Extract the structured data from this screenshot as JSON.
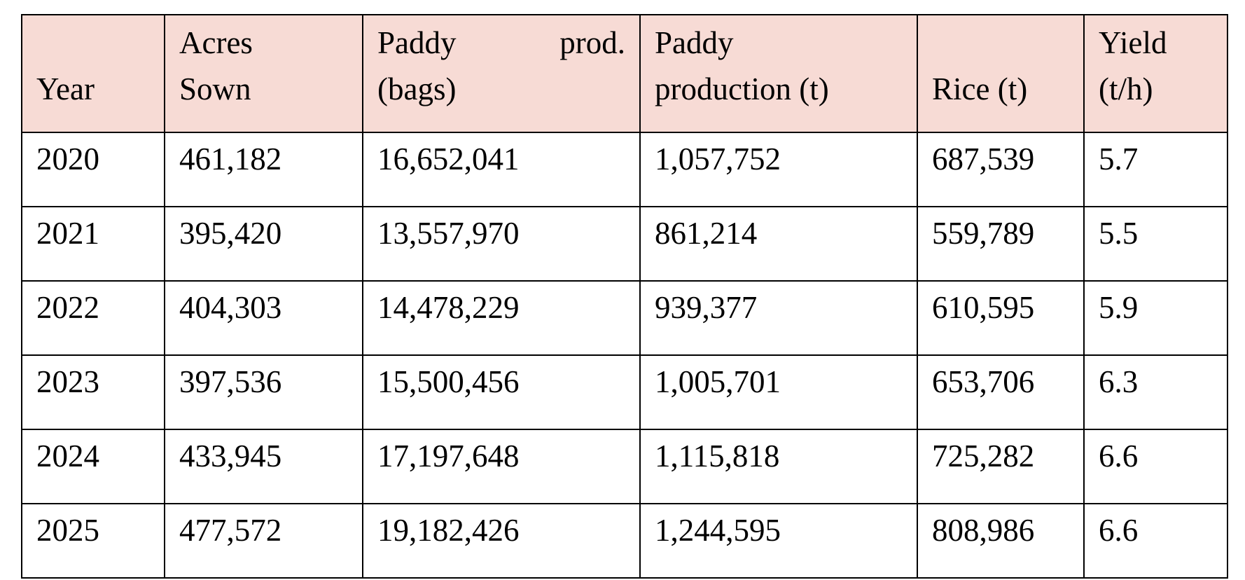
{
  "table": {
    "headers": {
      "year": "Year",
      "acres": [
        "Acres",
        "Sown"
      ],
      "bags": [
        "Paddy",
        "prod.",
        "(bags)"
      ],
      "paddy_t": [
        "Paddy",
        "production (t)"
      ],
      "rice_t": "Rice (t)",
      "yield": [
        "Yield",
        "(t/h)"
      ]
    },
    "header_background": "#f7dbd5",
    "rows": [
      [
        "2020",
        "461,182",
        "16,652,041",
        "1,057,752",
        "687,539",
        "5.7"
      ],
      [
        "2021",
        "395,420",
        "13,557,970",
        "861,214",
        "559,789",
        "5.5"
      ],
      [
        "2022",
        "404,303",
        "14,478,229",
        "939,377",
        "610,595",
        "5.9"
      ],
      [
        "2023",
        "397,536",
        "15,500,456",
        "1,005,701",
        "653,706",
        "6.3"
      ],
      [
        "2024",
        "433,945",
        "17,197,648",
        "1,115,818",
        "725,282",
        "6.6"
      ],
      [
        "2025",
        "477,572",
        "19,182,426",
        "1,244,595",
        "808,986",
        "6.6"
      ]
    ]
  }
}
